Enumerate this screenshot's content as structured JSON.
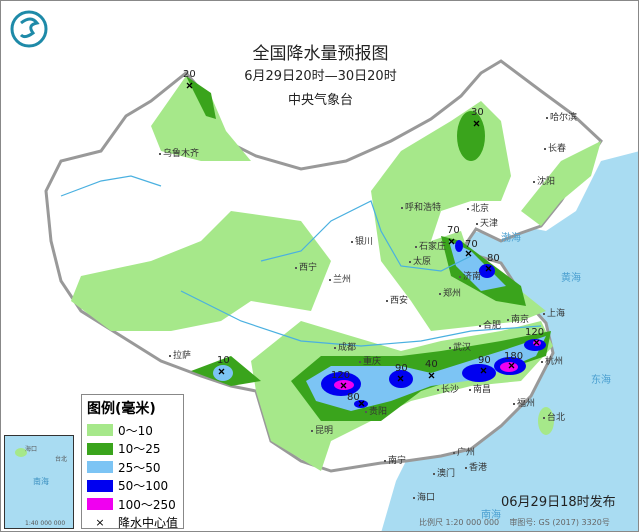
{
  "header": {
    "title": "全国降水量预报图",
    "period": "6月29日20时—30日20时",
    "issuer": "中央气象台"
  },
  "legend": {
    "title": "图例(毫米)",
    "items": [
      {
        "label": "0～10",
        "color": "#a6e88a"
      },
      {
        "label": "10～25",
        "color": "#3aa41c"
      },
      {
        "label": "25～50",
        "color": "#7cc4f4"
      },
      {
        "label": "50～100",
        "color": "#0000f0"
      },
      {
        "label": "100～250",
        "color": "#f000f0"
      }
    ],
    "center_label": "降水中心值"
  },
  "cities": [
    "乌鲁木齐",
    "呼和浩特",
    "银川",
    "西宁",
    "兰州",
    "西安",
    "太原",
    "石家庄",
    "郑州",
    "济南",
    "北京",
    "天津",
    "沈阳",
    "长春",
    "哈尔滨",
    "成都",
    "重庆",
    "贵阳",
    "昆明",
    "拉萨",
    "武汉",
    "长沙",
    "南昌",
    "合肥",
    "南京",
    "上海",
    "杭州",
    "福州",
    "台北",
    "南宁",
    "广州",
    "香港",
    "澳门",
    "海口"
  ],
  "seas": [
    "渤海",
    "黄海",
    "东海",
    "南海"
  ],
  "centers": [
    "20",
    "30",
    "70",
    "70",
    "80",
    "10",
    "120",
    "80",
    "90",
    "40",
    "90",
    "180",
    "120"
  ],
  "inset": {
    "labels": [
      "海口",
      "南海",
      "台北"
    ],
    "scale": "1:40 000 000"
  },
  "footer": {
    "published": "06月29日18时发布",
    "scale": "比例尺 1:20 000 000",
    "map_no": "审图号: GS (2017) 3320号"
  },
  "colors": {
    "land": "#ffffff",
    "sea": "#a9dcf2",
    "border": "#999999",
    "river": "#4ab0e0"
  }
}
